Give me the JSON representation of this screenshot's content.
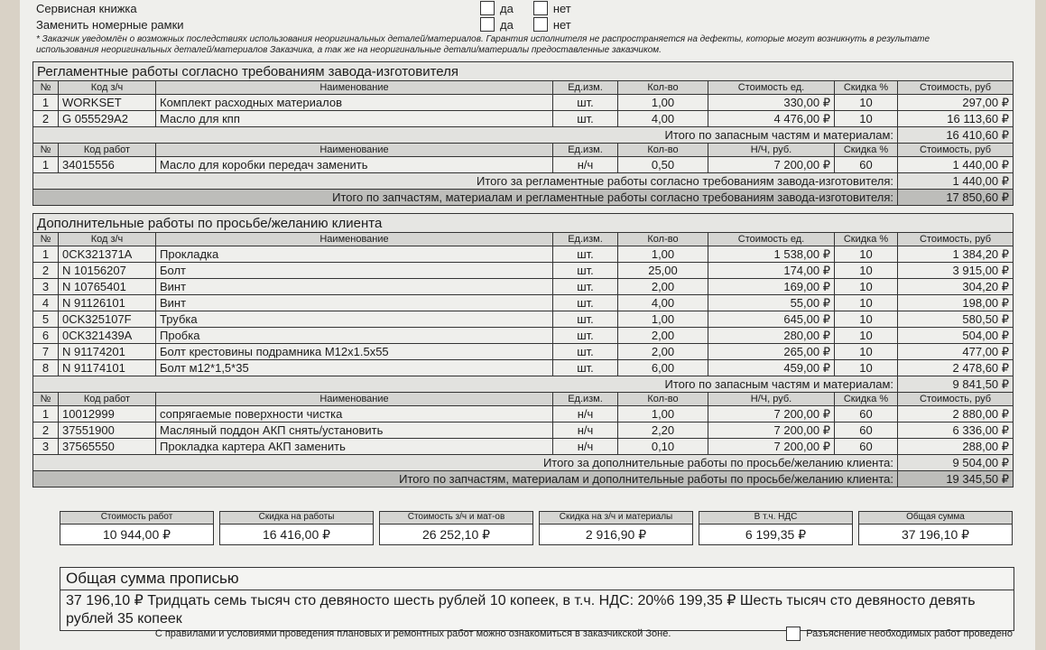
{
  "header": {
    "rows": [
      {
        "label": "Сервисная книжка",
        "yes": "да",
        "no": "нет"
      },
      {
        "label": "Заменить номерные рамки",
        "yes": "да",
        "no": "нет"
      }
    ]
  },
  "notice": "* Заказчик уведомлён о возможных последствиях использования неоригинальных деталей/материалов. Гарантия исполнителя не распространяется на дефекты, которые могут возникнуть в результате использования неоригинальных деталей/материалов Заказчика, а так же на неоригинальные детали/материалы предоставленные заказчиком.",
  "sections": [
    {
      "title": "Регламентные работы согласно требованиям завода-изготовителя",
      "parts": {
        "headers": [
          "№",
          "Код з/ч",
          "Наименование",
          "Ед.изм.",
          "Кол-во",
          "Стоимость ед.",
          "Скидка %",
          "Стоимость, руб"
        ],
        "rows": [
          [
            "1",
            "WORKSET",
            "Комплект расходных материалов",
            "шт.",
            "1,00",
            "330,00 ₽",
            "10",
            "297,00 ₽"
          ],
          [
            "2",
            "G 055529A2",
            "Масло для кпп",
            "шт.",
            "4,00",
            "4 476,00 ₽",
            "10",
            "16 113,60 ₽"
          ]
        ],
        "subtotal": {
          "label": "Итого по запасным частям и материалам:",
          "value": "16 410,60 ₽"
        }
      },
      "labor": {
        "headers": [
          "№",
          "Код работ",
          "Наименование",
          "Ед.изм.",
          "Кол-во",
          "Н/Ч, руб.",
          "Скидка %",
          "Стоимость, руб"
        ],
        "rows": [
          [
            "1",
            "34015556",
            "Масло для коробки передач заменить",
            "н/ч",
            "0,50",
            "7 200,00 ₽",
            "60",
            "1 440,00 ₽"
          ]
        ],
        "total": {
          "label": "Итого за регламентные работы согласно требованиям завода-изготовителя:",
          "value": "1 440,00 ₽"
        }
      },
      "grand": {
        "label": "Итого по запчастям, материалам и регламентные работы согласно требованиям завода-изготовителя:",
        "value": "17 850,60 ₽"
      }
    },
    {
      "title": "Дополнительные работы по просьбе/желанию клиента",
      "parts": {
        "headers": [
          "№",
          "Код з/ч",
          "Наименование",
          "Ед.изм.",
          "Кол-во",
          "Стоимость ед.",
          "Скидка %",
          "Стоимость, руб"
        ],
        "rows": [
          [
            "1",
            "0CK321371A",
            "Прокладка",
            "шт.",
            "1,00",
            "1 538,00 ₽",
            "10",
            "1 384,20 ₽"
          ],
          [
            "2",
            "N 10156207",
            "Болт",
            "шт.",
            "25,00",
            "174,00 ₽",
            "10",
            "3 915,00 ₽"
          ],
          [
            "3",
            "N 10765401",
            "Винт",
            "шт.",
            "2,00",
            "169,00 ₽",
            "10",
            "304,20 ₽"
          ],
          [
            "4",
            "N 91126101",
            "Винт",
            "шт.",
            "4,00",
            "55,00 ₽",
            "10",
            "198,00 ₽"
          ],
          [
            "5",
            "0CK325107F",
            "Трубка",
            "шт.",
            "1,00",
            "645,00 ₽",
            "10",
            "580,50 ₽"
          ],
          [
            "6",
            "0CK321439A",
            "Пробка",
            "шт.",
            "2,00",
            "280,00 ₽",
            "10",
            "504,00 ₽"
          ],
          [
            "7",
            "N 91174201",
            "Болт крестовины подрамника M12x1.5x55",
            "шт.",
            "2,00",
            "265,00 ₽",
            "10",
            "477,00 ₽"
          ],
          [
            "8",
            "N 91174101",
            "Болт м12*1,5*35",
            "шт.",
            "6,00",
            "459,00 ₽",
            "10",
            "2 478,60 ₽"
          ]
        ],
        "subtotal": {
          "label": "Итого по запасным частям и материалам:",
          "value": "9 841,50 ₽"
        }
      },
      "labor": {
        "headers": [
          "№",
          "Код работ",
          "Наименование",
          "Ед.изм.",
          "Кол-во",
          "Н/Ч, руб.",
          "Скидка %",
          "Стоимость, руб"
        ],
        "rows": [
          [
            "1",
            "10012999",
            "сопрягаемые поверхности чистка",
            "н/ч",
            "1,00",
            "7 200,00 ₽",
            "60",
            "2 880,00 ₽"
          ],
          [
            "2",
            "37551900",
            "Масляный поддон АКП снять/установить",
            "н/ч",
            "2,20",
            "7 200,00 ₽",
            "60",
            "6 336,00 ₽"
          ],
          [
            "3",
            "37565550",
            "Прокладка картера АКП заменить",
            "н/ч",
            "0,10",
            "7 200,00 ₽",
            "60",
            "288,00 ₽"
          ]
        ],
        "total": {
          "label": "Итого за дополнительные работы по просьбе/желанию клиента:",
          "value": "9 504,00 ₽"
        }
      },
      "grand": {
        "label": "Итого по запчастям, материалам и дополнительные работы по просьбе/желанию клиента:",
        "value": "19 345,50 ₽"
      }
    }
  ],
  "summary": [
    {
      "label": "Стоимость работ",
      "value": "10 944,00 ₽"
    },
    {
      "label": "Скидка на работы",
      "value": "16 416,00 ₽"
    },
    {
      "label": "Стоимость з/ч и мат-ов",
      "value": "26 252,10 ₽"
    },
    {
      "label": "Скидка на з/ч и материалы",
      "value": "2 916,90 ₽"
    },
    {
      "label": "В т.ч. НДС",
      "value": "6 199,35 ₽"
    },
    {
      "label": "Общая сумма",
      "value": "37 196,10 ₽"
    }
  ],
  "words": {
    "title": "Общая сумма прописью",
    "text": "37 196,10 ₽ Тридцать семь тысяч сто девяносто шесть рублей 10 копеек, в т.ч. НДС: 20%6 199,35 ₽ Шесть тысяч сто девяносто девять рублей 35 копеек"
  },
  "footer": {
    "rules": "С правилами и условиями проведения плановых и ремонтных работ можно ознакомиться в заказчикской Зоне.",
    "check": "Разъяснение необходимых работ проведено"
  }
}
